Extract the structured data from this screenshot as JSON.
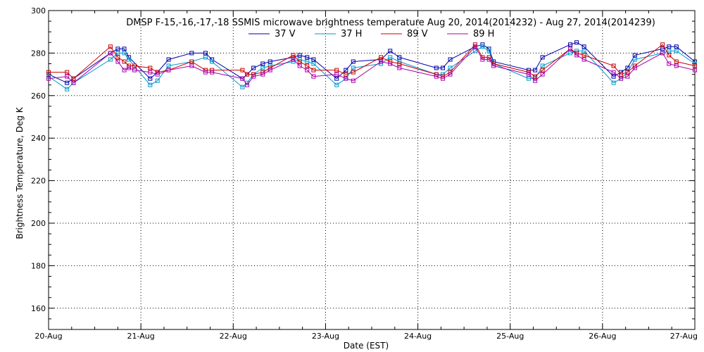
{
  "chart_data": {
    "type": "line",
    "title": "DMSP F-15,-16,-17,-18 SSMIS microwave brightness temperature Aug 20, 2014(2014232) - Aug 27, 2014(2014239)",
    "xlabel": "Date (EST)",
    "ylabel": "Brightness Temperature, Deg K",
    "xlim": [
      0,
      7
    ],
    "ylim": [
      150,
      300
    ],
    "x_ticks": [
      0,
      1,
      2,
      3,
      4,
      5,
      6,
      7
    ],
    "x_tick_labels": [
      "20-Aug",
      "21-Aug",
      "22-Aug",
      "23-Aug",
      "24-Aug",
      "25-Aug",
      "26-Aug",
      "27-Aug"
    ],
    "y_ticks": [
      160,
      180,
      200,
      220,
      240,
      260,
      280,
      300
    ],
    "y_tick_labels": [
      "160",
      "180",
      "200",
      "220",
      "240",
      "260",
      "280",
      "300"
    ],
    "grid": true,
    "legend_position": "top",
    "series": [
      {
        "name": "37 V",
        "color": "#0000aa",
        "x": [
          0,
          0.2,
          0.27,
          0.67,
          0.75,
          0.82,
          0.87,
          1.1,
          1.18,
          1.3,
          1.55,
          1.7,
          1.77,
          2.1,
          2.15,
          2.22,
          2.32,
          2.4,
          2.65,
          2.72,
          2.8,
          2.87,
          3.12,
          3.22,
          3.3,
          3.6,
          3.7,
          3.8,
          4.2,
          4.27,
          4.35,
          4.62,
          4.7,
          4.77,
          4.82,
          5.2,
          5.27,
          5.35,
          5.65,
          5.72,
          5.8,
          6.12,
          6.2,
          6.27,
          6.35,
          6.65,
          6.72,
          6.8,
          7.0
        ],
        "values": [
          270,
          266,
          268,
          280,
          282,
          282,
          278,
          268,
          271,
          277,
          280,
          280,
          277,
          268,
          270,
          273,
          275,
          276,
          278,
          279,
          278,
          277,
          268,
          272,
          276,
          277,
          281,
          278,
          273,
          273,
          277,
          283,
          284,
          282,
          276,
          272,
          272,
          278,
          284,
          285,
          283,
          269,
          271,
          273,
          279,
          282,
          283,
          283,
          276
        ]
      },
      {
        "name": "37 H",
        "color": "#0099cc",
        "x": [
          0,
          0.2,
          0.27,
          0.67,
          0.75,
          0.82,
          0.87,
          1.1,
          1.18,
          1.3,
          1.55,
          1.7,
          1.77,
          2.1,
          2.15,
          2.22,
          2.32,
          2.4,
          2.65,
          2.72,
          2.8,
          2.87,
          3.12,
          3.22,
          3.3,
          3.6,
          3.7,
          3.8,
          4.2,
          4.27,
          4.35,
          4.62,
          4.7,
          4.77,
          4.82,
          5.2,
          5.27,
          5.35,
          5.65,
          5.72,
          5.8,
          6.12,
          6.2,
          6.27,
          6.35,
          6.65,
          6.72,
          6.8,
          7.0
        ],
        "values": [
          269,
          263,
          266,
          277,
          280,
          280,
          277,
          265,
          267,
          274,
          276,
          278,
          276,
          264,
          266,
          270,
          273,
          274,
          276,
          277,
          276,
          275,
          265,
          268,
          273,
          275,
          278,
          276,
          270,
          270,
          273,
          281,
          283,
          281,
          275,
          268,
          268,
          274,
          280,
          281,
          281,
          266,
          268,
          271,
          277,
          280,
          281,
          281,
          275
        ]
      },
      {
        "name": "89 V",
        "color": "#cc0000",
        "x": [
          0,
          0.2,
          0.27,
          0.67,
          0.75,
          0.82,
          0.87,
          0.93,
          1.1,
          1.18,
          1.3,
          1.55,
          1.7,
          1.77,
          2.1,
          2.15,
          2.22,
          2.32,
          2.4,
          2.65,
          2.72,
          2.8,
          2.87,
          3.12,
          3.22,
          3.3,
          3.6,
          3.7,
          3.8,
          4.2,
          4.27,
          4.35,
          4.62,
          4.7,
          4.77,
          4.82,
          5.2,
          5.27,
          5.35,
          5.65,
          5.72,
          5.8,
          6.12,
          6.2,
          6.27,
          6.35,
          6.65,
          6.72,
          6.8,
          7.0
        ],
        "values": [
          271,
          271,
          268,
          283,
          278,
          276,
          274,
          274,
          273,
          271,
          272,
          276,
          272,
          272,
          272,
          270,
          270,
          271,
          273,
          279,
          276,
          274,
          272,
          272,
          270,
          271,
          278,
          276,
          275,
          270,
          269,
          271,
          284,
          278,
          278,
          275,
          271,
          269,
          272,
          282,
          280,
          279,
          274,
          270,
          271,
          274,
          284,
          279,
          276,
          274
        ]
      },
      {
        "name": "89 H",
        "color": "#aa00aa",
        "x": [
          0,
          0.2,
          0.27,
          0.67,
          0.75,
          0.82,
          0.87,
          0.93,
          1.1,
          1.18,
          1.3,
          1.55,
          1.7,
          1.77,
          2.1,
          2.15,
          2.22,
          2.32,
          2.4,
          2.65,
          2.72,
          2.8,
          2.87,
          3.12,
          3.22,
          3.3,
          3.6,
          3.7,
          3.8,
          4.2,
          4.27,
          4.35,
          4.62,
          4.7,
          4.77,
          4.82,
          5.2,
          5.27,
          5.35,
          5.65,
          5.72,
          5.8,
          6.12,
          6.2,
          6.27,
          6.35,
          6.65,
          6.72,
          6.8,
          7.0
        ],
        "values": [
          268,
          269,
          266,
          280,
          276,
          272,
          273,
          272,
          271,
          270,
          272,
          274,
          271,
          271,
          268,
          265,
          269,
          270,
          272,
          277,
          274,
          272,
          269,
          270,
          268,
          267,
          276,
          275,
          273,
          269,
          268,
          270,
          283,
          277,
          277,
          274,
          270,
          267,
          270,
          282,
          279,
          277,
          271,
          268,
          269,
          273,
          280,
          275,
          274,
          272
        ]
      }
    ]
  }
}
